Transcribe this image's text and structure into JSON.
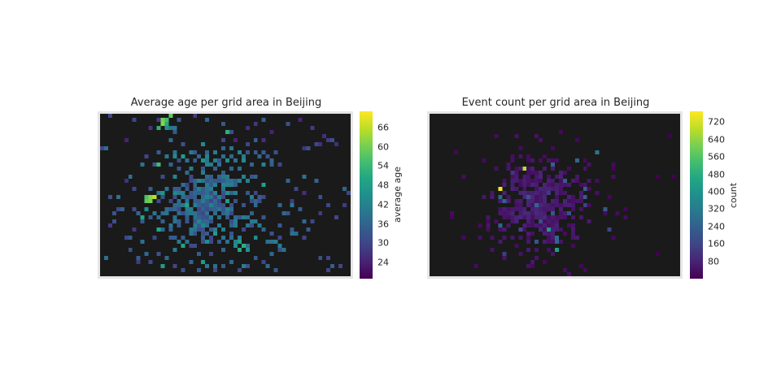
{
  "chart_data": [
    {
      "type": "heatmap",
      "title": "Average age per grid area in Beijing",
      "colorbar_label": "average age",
      "colormap": "viridis",
      "color_range": [
        19,
        71
      ],
      "colorbar_ticks": [
        24,
        30,
        36,
        42,
        48,
        54,
        60,
        66
      ],
      "background_color": "#1a1a1a",
      "grid_cols": 62,
      "grid_rows": 40,
      "cells": [
        [
          2,
          0,
          30
        ],
        [
          8,
          1,
          30
        ],
        [
          12,
          3,
          27
        ],
        [
          14,
          1,
          28
        ],
        [
          15,
          1,
          60
        ],
        [
          16,
          1,
          55
        ],
        [
          15,
          2,
          62
        ],
        [
          16,
          2,
          50
        ],
        [
          17,
          0,
          58
        ],
        [
          14,
          3,
          52
        ],
        [
          16,
          3,
          45
        ],
        [
          18,
          3,
          40
        ],
        [
          23,
          0,
          28
        ],
        [
          26,
          1,
          36
        ],
        [
          30,
          2,
          33
        ],
        [
          31,
          4,
          52
        ],
        [
          36,
          3,
          26
        ],
        [
          38,
          2,
          28
        ],
        [
          42,
          4,
          24
        ],
        [
          46,
          2,
          32
        ],
        [
          49,
          1,
          24
        ],
        [
          52,
          3,
          28
        ],
        [
          55,
          5,
          26
        ],
        [
          56,
          6,
          28
        ],
        [
          57,
          6,
          32
        ],
        [
          58,
          7,
          26
        ],
        [
          54,
          7,
          26
        ],
        [
          53,
          7,
          30
        ],
        [
          50,
          8,
          27
        ],
        [
          0,
          8,
          30
        ],
        [
          1,
          8,
          38
        ],
        [
          6,
          6,
          24
        ],
        [
          14,
          9,
          34
        ],
        [
          16,
          10,
          40
        ],
        [
          18,
          10,
          44
        ],
        [
          20,
          10,
          48
        ],
        [
          22,
          9,
          40
        ],
        [
          24,
          10,
          36
        ],
        [
          26,
          10,
          42
        ],
        [
          28,
          9,
          40
        ],
        [
          30,
          10,
          38
        ],
        [
          32,
          10,
          36
        ],
        [
          34,
          9,
          42
        ],
        [
          36,
          9,
          32
        ],
        [
          38,
          9,
          34
        ],
        [
          40,
          9,
          34
        ],
        [
          41,
          10,
          32
        ],
        [
          39,
          10,
          36
        ],
        [
          14,
          12,
          42
        ],
        [
          17,
          12,
          36
        ],
        [
          21,
          11,
          38
        ],
        [
          23,
          11,
          34
        ],
        [
          25,
          11,
          46
        ],
        [
          27,
          12,
          40
        ],
        [
          29,
          12,
          38
        ],
        [
          31,
          11,
          44
        ],
        [
          33,
          11,
          38
        ],
        [
          35,
          11,
          44
        ],
        [
          37,
          12,
          36
        ],
        [
          40,
          12,
          42
        ],
        [
          42,
          11,
          36
        ],
        [
          44,
          12,
          30
        ],
        [
          14,
          12,
          55
        ],
        [
          36,
          7,
          30
        ],
        [
          40,
          6,
          26
        ],
        [
          33,
          6,
          24
        ],
        [
          6,
          16,
          26
        ],
        [
          8,
          18,
          30
        ],
        [
          12,
          18,
          34
        ],
        [
          13,
          20,
          66
        ],
        [
          12,
          20,
          62
        ],
        [
          11,
          21,
          58
        ],
        [
          12,
          21,
          60
        ],
        [
          11,
          20,
          56
        ],
        [
          2,
          20,
          32
        ],
        [
          4,
          23,
          30
        ],
        [
          2,
          27,
          28
        ],
        [
          3,
          26,
          32
        ],
        [
          54,
          20,
          32
        ],
        [
          56,
          22,
          30
        ],
        [
          54,
          24,
          28
        ],
        [
          52,
          26,
          30
        ],
        [
          48,
          18,
          30
        ],
        [
          50,
          19,
          26
        ],
        [
          47,
          21,
          28
        ],
        [
          49,
          23,
          34
        ],
        [
          46,
          24,
          32
        ],
        [
          44,
          22,
          36
        ],
        [
          44,
          27,
          34
        ],
        [
          60,
          18,
          36
        ],
        [
          61,
          19,
          30
        ],
        [
          60,
          22,
          28
        ],
        [
          58,
          25,
          30
        ],
        [
          51,
          28,
          34
        ],
        [
          50,
          30,
          30
        ],
        [
          54,
          35,
          32
        ],
        [
          56,
          38,
          30
        ],
        [
          57,
          37,
          34
        ],
        [
          59,
          37,
          30
        ],
        [
          56,
          35,
          30
        ],
        [
          10,
          26,
          34
        ],
        [
          8,
          28,
          28
        ],
        [
          6,
          30,
          30
        ],
        [
          7,
          33,
          32
        ],
        [
          9,
          36,
          28
        ],
        [
          11,
          34,
          36
        ],
        [
          12,
          36,
          30
        ],
        [
          14,
          34,
          32
        ],
        [
          16,
          35,
          36
        ],
        [
          18,
          37,
          30
        ],
        [
          20,
          38,
          32
        ],
        [
          22,
          36,
          36
        ],
        [
          24,
          38,
          34
        ],
        [
          26,
          37,
          40
        ],
        [
          28,
          38,
          30
        ],
        [
          30,
          37,
          34
        ],
        [
          32,
          36,
          36
        ],
        [
          34,
          38,
          30
        ],
        [
          36,
          37,
          32
        ],
        [
          38,
          35,
          34
        ],
        [
          40,
          36,
          30
        ],
        [
          42,
          34,
          36
        ],
        [
          44,
          33,
          32
        ],
        [
          34,
          31,
          48
        ],
        [
          35,
          32,
          52
        ],
        [
          36,
          33,
          46
        ],
        [
          34,
          33,
          50
        ],
        [
          33,
          32,
          44
        ],
        [
          40,
          28,
          36
        ],
        [
          42,
          29,
          32
        ],
        [
          39,
          27,
          40
        ],
        [
          44,
          30,
          30
        ],
        [
          38,
          30,
          44
        ],
        [
          15,
          28,
          36
        ],
        [
          17,
          30,
          34
        ],
        [
          13,
          30,
          30
        ]
      ],
      "dense_region": {
        "description_free": true
      }
    },
    {
      "type": "heatmap",
      "title": "Event count per grid area in Beijing",
      "colorbar_label": "count",
      "colormap": "viridis",
      "color_range": [
        0,
        770
      ],
      "colorbar_ticks": [
        80,
        160,
        240,
        320,
        400,
        480,
        560,
        640,
        720
      ],
      "background_color": "#1a1a1a",
      "grid_cols": 62,
      "grid_rows": 40,
      "cells": [
        [
          17,
          18,
          760
        ],
        [
          23,
          13,
          690
        ],
        [
          29,
          28,
          420
        ],
        [
          31,
          33,
          440
        ],
        [
          41,
          9,
          300
        ],
        [
          36,
          11,
          260
        ],
        [
          33,
          16,
          220
        ],
        [
          38,
          18,
          240
        ],
        [
          26,
          22,
          260
        ],
        [
          24,
          20,
          200
        ],
        [
          30,
          24,
          210
        ],
        [
          27,
          26,
          180
        ],
        [
          34,
          24,
          190
        ],
        [
          22,
          28,
          170
        ],
        [
          26,
          31,
          200
        ],
        [
          44,
          28,
          160
        ],
        [
          18,
          34,
          140
        ],
        [
          38,
          22,
          150
        ],
        [
          20,
          14,
          120
        ],
        [
          29,
          19,
          130
        ]
      ]
    }
  ]
}
